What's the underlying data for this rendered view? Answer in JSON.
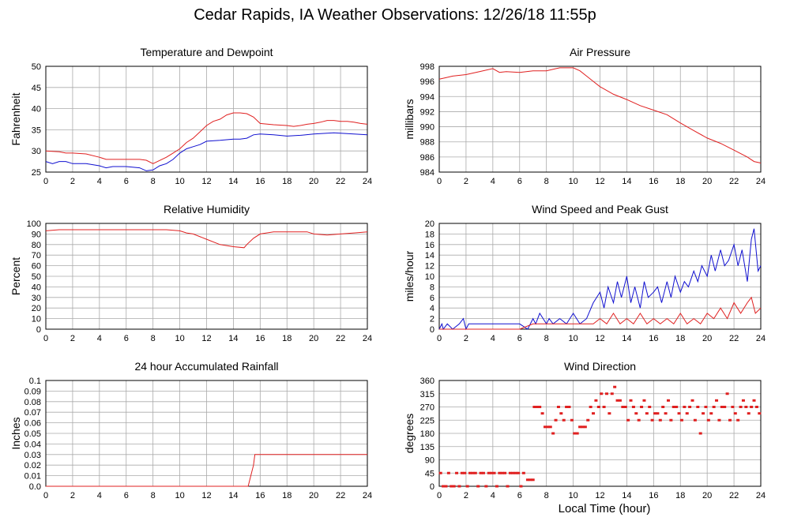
{
  "title": "Cedar Rapids, IA Weather Observations: 12/26/18 11:55p",
  "footer_xlabel": "Local Time (hour)",
  "colors": {
    "red": "#e02020",
    "blue": "#1010d0",
    "grid": "#aaaaaa"
  },
  "chart_data": [
    {
      "id": "temp",
      "type": "line",
      "title": "Temperature and Dewpoint",
      "ylabel": "Fahrenheit",
      "xlim": [
        0,
        24
      ],
      "ylim": [
        25,
        50
      ],
      "xticks": [
        0,
        2,
        4,
        6,
        8,
        10,
        12,
        14,
        16,
        18,
        20,
        22,
        24
      ],
      "yticks": [
        25,
        30,
        35,
        40,
        45,
        50
      ],
      "ytick_labels": [
        "25",
        "30",
        "35",
        "40",
        "45",
        "50"
      ],
      "grid": true,
      "series": [
        {
          "color": "#e02020",
          "x": [
            0,
            1,
            1.5,
            2,
            3,
            4,
            4.5,
            5,
            6,
            7,
            7.5,
            8,
            9,
            9.5,
            10,
            10.5,
            11,
            11.5,
            12,
            12.5,
            13,
            13.5,
            14,
            14.5,
            15,
            15.5,
            16,
            17,
            18,
            18.5,
            19,
            19.5,
            20,
            20.5,
            21,
            21.5,
            22,
            22.5,
            23,
            23.5,
            24
          ],
          "y": [
            30,
            29.8,
            29.5,
            29.5,
            29.3,
            28.5,
            28,
            28,
            28,
            28,
            27.8,
            27,
            28.5,
            29.5,
            30.5,
            32,
            33,
            34.5,
            36,
            37,
            37.5,
            38.5,
            39,
            39,
            38.8,
            38,
            36.5,
            36.2,
            36,
            35.8,
            36,
            36.3,
            36.5,
            36.8,
            37.2,
            37.2,
            37,
            37,
            36.8,
            36.5,
            36.3
          ]
        },
        {
          "color": "#1010d0",
          "x": [
            0,
            0.5,
            1,
            1.5,
            2,
            3,
            4,
            4.5,
            5,
            6,
            7,
            7.5,
            8,
            8.5,
            9,
            9.5,
            10,
            10.5,
            11,
            11.5,
            12,
            13,
            14,
            14.5,
            15,
            15.5,
            16,
            17,
            18,
            19,
            20,
            21,
            21.5,
            22,
            23,
            24
          ],
          "y": [
            27.5,
            27,
            27.5,
            27.5,
            27,
            27,
            26.5,
            26,
            26.3,
            26.3,
            26,
            25.3,
            25.5,
            26.5,
            27,
            28,
            29.5,
            30.5,
            31,
            31.5,
            32.3,
            32.5,
            32.8,
            32.8,
            33,
            33.8,
            34,
            33.8,
            33.5,
            33.7,
            34,
            34.2,
            34.3,
            34.2,
            34,
            33.8
          ]
        }
      ]
    },
    {
      "id": "pressure",
      "type": "line",
      "title": "Air Pressure",
      "ylabel": "millibars",
      "xlim": [
        0,
        24
      ],
      "ylim": [
        984,
        998
      ],
      "xticks": [
        0,
        2,
        4,
        6,
        8,
        10,
        12,
        14,
        16,
        18,
        20,
        22,
        24
      ],
      "yticks": [
        984,
        986,
        988,
        990,
        992,
        994,
        996,
        998
      ],
      "ytick_labels": [
        "984",
        "986",
        "988",
        "990",
        "992",
        "994",
        "996",
        "998"
      ],
      "grid": true,
      "series": [
        {
          "color": "#e02020",
          "x": [
            0,
            0.5,
            1,
            2,
            3,
            4,
            4.5,
            5,
            6,
            7,
            8,
            8.5,
            9,
            10,
            10.5,
            11,
            11.5,
            12,
            13,
            14,
            15,
            16,
            17,
            18,
            19,
            20,
            21,
            22,
            23,
            23.5,
            24
          ],
          "y": [
            996.3,
            996.5,
            996.7,
            996.9,
            997.3,
            997.7,
            997.2,
            997.3,
            997.2,
            997.4,
            997.4,
            997.6,
            997.8,
            997.8,
            997.4,
            996.7,
            996,
            995.3,
            994.3,
            993.6,
            992.8,
            992.2,
            991.6,
            990.5,
            989.5,
            988.5,
            987.8,
            986.9,
            986,
            985.4,
            985.2
          ]
        }
      ]
    },
    {
      "id": "humidity",
      "type": "line",
      "title": "Relative Humidity",
      "ylabel": "Percent",
      "xlim": [
        0,
        24
      ],
      "ylim": [
        0,
        100
      ],
      "xticks": [
        0,
        2,
        4,
        6,
        8,
        10,
        12,
        14,
        16,
        18,
        20,
        22,
        24
      ],
      "yticks": [
        0,
        10,
        20,
        30,
        40,
        50,
        60,
        70,
        80,
        90,
        100
      ],
      "ytick_labels": [
        "0",
        "10",
        "20",
        "30",
        "40",
        "50",
        "60",
        "70",
        "80",
        "90",
        "100"
      ],
      "grid": true,
      "series": [
        {
          "color": "#e02020",
          "x": [
            0,
            1,
            2,
            4,
            6,
            8,
            9,
            10,
            10.5,
            11,
            12,
            13,
            14,
            14.8,
            15,
            15.5,
            16,
            17,
            18,
            19,
            19.5,
            20,
            21,
            22,
            23,
            24
          ],
          "y": [
            93,
            94,
            94,
            94,
            94,
            94,
            94,
            93,
            91,
            90,
            85,
            80,
            78,
            77,
            80,
            86,
            90,
            92,
            92,
            92,
            92,
            90,
            89,
            90,
            91,
            92
          ]
        }
      ]
    },
    {
      "id": "wind",
      "type": "line",
      "title": "Wind Speed and Peak Gust",
      "ylabel": "miles/hour",
      "xlim": [
        0,
        24
      ],
      "ylim": [
        0,
        20
      ],
      "xticks": [
        0,
        2,
        4,
        6,
        8,
        10,
        12,
        14,
        16,
        18,
        20,
        22,
        24
      ],
      "yticks": [
        0,
        2,
        4,
        6,
        8,
        10,
        12,
        14,
        16,
        18,
        20
      ],
      "ytick_labels": [
        "0",
        "2",
        "4",
        "6",
        "8",
        "10",
        "12",
        "14",
        "16",
        "18",
        "20"
      ],
      "grid": true,
      "series": [
        {
          "color": "#1010d0",
          "x": [
            0,
            0.2,
            0.3,
            0.6,
            1,
            1.5,
            1.8,
            2,
            2.2,
            3,
            4,
            5,
            6,
            6.6,
            7,
            7.2,
            7.5,
            8,
            8.2,
            8.5,
            9,
            9.5,
            10,
            10.5,
            11,
            11.5,
            12,
            12.3,
            12.6,
            13,
            13.3,
            13.6,
            14,
            14.3,
            14.6,
            15,
            15.3,
            15.6,
            16,
            16.3,
            16.6,
            17,
            17.3,
            17.6,
            18,
            18.3,
            18.6,
            19,
            19.3,
            19.6,
            20,
            20.3,
            20.6,
            21,
            21.3,
            21.6,
            22,
            22.3,
            22.6,
            23,
            23.3,
            23.5,
            23.8,
            24
          ],
          "y": [
            0,
            1,
            0,
            1,
            0,
            1,
            2,
            0,
            1,
            1,
            1,
            1,
            1,
            0,
            2,
            1,
            3,
            1,
            2,
            1,
            2,
            1,
            3,
            1,
            2,
            5,
            7,
            4,
            8,
            5,
            9,
            6,
            10,
            5,
            8,
            4,
            9,
            6,
            7,
            8,
            5,
            9,
            6,
            10,
            7,
            9,
            8,
            11,
            9,
            12,
            10,
            14,
            11,
            15,
            12,
            13,
            16,
            12,
            15,
            9,
            17,
            19,
            11,
            12
          ]
        },
        {
          "color": "#e02020",
          "x": [
            0,
            6,
            7,
            8,
            9,
            10,
            10.5,
            11,
            11.5,
            12,
            12.5,
            13,
            13.5,
            14,
            14.5,
            15,
            15.5,
            16,
            16.5,
            17,
            17.5,
            18,
            18.5,
            19,
            19.5,
            20,
            20.5,
            21,
            21.5,
            22,
            22.5,
            23,
            23.3,
            23.6,
            24
          ],
          "y": [
            0,
            0,
            1,
            1,
            1,
            1,
            1,
            1,
            1,
            2,
            1,
            3,
            1,
            2,
            1,
            3,
            1,
            2,
            1,
            2,
            1,
            3,
            1,
            2,
            1,
            3,
            2,
            4,
            2,
            5,
            3,
            5,
            6,
            3,
            4
          ]
        }
      ]
    },
    {
      "id": "rain",
      "type": "line",
      "title": "24 hour Accumulated Rainfall",
      "ylabel": "Inches",
      "xlim": [
        0,
        24
      ],
      "ylim": [
        0,
        0.1
      ],
      "xticks": [
        0,
        2,
        4,
        6,
        8,
        10,
        12,
        14,
        16,
        18,
        20,
        22,
        24
      ],
      "yticks": [
        0,
        0.01,
        0.02,
        0.03,
        0.04,
        0.05,
        0.06,
        0.07,
        0.08,
        0.09,
        0.1
      ],
      "ytick_labels": [
        "0.0",
        "0.01",
        "0.02",
        "0.03",
        "0.04",
        "0.05",
        "0.06",
        "0.07",
        "0.08",
        "0.09",
        "0.1"
      ],
      "grid": true,
      "series": [
        {
          "color": "#e02020",
          "x": [
            0,
            15.1,
            15.3,
            15.5,
            15.6,
            24
          ],
          "y": [
            0,
            0,
            0.01,
            0.02,
            0.03,
            0.03
          ]
        }
      ]
    },
    {
      "id": "direction",
      "type": "scatter",
      "title": "Wind Direction",
      "ylabel": "degrees",
      "xlim": [
        0,
        24
      ],
      "ylim": [
        0,
        360
      ],
      "xticks": [
        0,
        2,
        4,
        6,
        8,
        10,
        12,
        14,
        16,
        18,
        20,
        22,
        24
      ],
      "yticks": [
        0,
        45,
        90,
        135,
        180,
        225,
        270,
        315,
        360
      ],
      "ytick_labels": [
        "0",
        "45",
        "90",
        "135",
        "180",
        "225",
        "270",
        "315",
        "360"
      ],
      "grid": true,
      "series": [
        {
          "color": "#e02020",
          "x": [
            0.1,
            0.3,
            0.5,
            0.7,
            0.9,
            1.1,
            1.3,
            1.5,
            1.7,
            1.9,
            2.1,
            2.3,
            2.5,
            2.7,
            2.9,
            3.1,
            3.3,
            3.5,
            3.7,
            3.9,
            4.1,
            4.3,
            4.5,
            4.7,
            4.9,
            5.1,
            5.3,
            5.5,
            5.7,
            5.9,
            6.1,
            6.3,
            6.6,
            6.8,
            7,
            7.1,
            7.3,
            7.5,
            7.7,
            7.9,
            8.1,
            8.3,
            8.5,
            8.7,
            8.9,
            9.1,
            9.3,
            9.5,
            9.7,
            9.9,
            10.1,
            10.3,
            10.5,
            10.7,
            10.9,
            11.1,
            11.3,
            11.5,
            11.7,
            11.9,
            12.1,
            12.3,
            12.5,
            12.7,
            12.9,
            13.1,
            13.3,
            13.5,
            13.7,
            13.9,
            14.1,
            14.3,
            14.5,
            14.7,
            14.9,
            15.1,
            15.3,
            15.5,
            15.7,
            15.9,
            16.1,
            16.3,
            16.5,
            16.7,
            16.9,
            17.1,
            17.3,
            17.5,
            17.7,
            17.9,
            18.1,
            18.3,
            18.5,
            18.7,
            18.9,
            19.1,
            19.3,
            19.5,
            19.7,
            19.9,
            20.1,
            20.3,
            20.5,
            20.7,
            20.9,
            21.1,
            21.3,
            21.5,
            21.7,
            21.9,
            22.1,
            22.3,
            22.5,
            22.7,
            22.9,
            23.1,
            23.3,
            23.5,
            23.7,
            23.9
          ],
          "y": [
            45,
            0,
            0,
            45,
            0,
            0,
            45,
            0,
            45,
            45,
            0,
            45,
            45,
            45,
            0,
            45,
            45,
            0,
            45,
            45,
            45,
            0,
            45,
            45,
            45,
            0,
            45,
            45,
            45,
            45,
            0,
            45,
            22,
            22,
            22,
            270,
            270,
            270,
            248,
            202,
            202,
            202,
            180,
            225,
            270,
            248,
            225,
            270,
            270,
            225,
            180,
            180,
            202,
            202,
            202,
            225,
            270,
            248,
            292,
            270,
            315,
            270,
            315,
            248,
            315,
            338,
            292,
            292,
            270,
            270,
            225,
            292,
            270,
            248,
            225,
            270,
            292,
            248,
            270,
            225,
            248,
            248,
            225,
            270,
            248,
            292,
            225,
            270,
            270,
            248,
            225,
            270,
            248,
            270,
            292,
            225,
            270,
            180,
            248,
            270,
            225,
            248,
            270,
            292,
            225,
            270,
            270,
            315,
            225,
            270,
            248,
            225,
            270,
            292,
            270,
            248,
            270,
            292,
            270,
            248
          ]
        }
      ]
    }
  ]
}
